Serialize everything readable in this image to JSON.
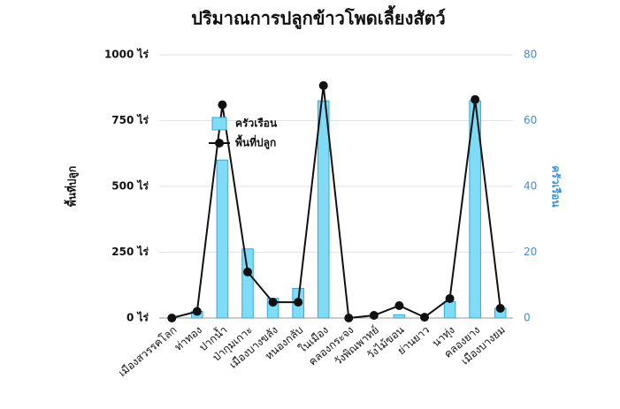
{
  "chart_data": {
    "type": "bar_line",
    "title": "ปริมาณการปลูกข้าวโพดเลี้ยงสัตว์",
    "y_label": "พื้นที่ปลูก",
    "y2_label": "ครัวเรือน",
    "categories": [
      "เมืองสวรรคโลก",
      "ท่าทอง",
      "ปากน้ำ",
      "ป่ากุมเกาะ",
      "เมืองบางขลัง",
      "หนองกลับ",
      "ในเมือง",
      "คลองกระจง",
      "วังพิณพาทย์",
      "วังไม้ขอน",
      "ย่านยาว",
      "นาทุ่ง",
      "คลองยาง",
      "เมืองบางยม"
    ],
    "series": [
      {
        "name": "ครัวเรือน",
        "type": "bar",
        "axis": "y2",
        "color": "#7fdcf7",
        "values": [
          0,
          2,
          48,
          21,
          6,
          9,
          66,
          0,
          0,
          1,
          0,
          5,
          66,
          3
        ]
      },
      {
        "name": "พื้นที่ปลูก",
        "type": "line",
        "axis": "y",
        "color": "#111111",
        "values": [
          0,
          25,
          810,
          175,
          60,
          60,
          883,
          0,
          10,
          47,
          3,
          74,
          830,
          37
        ]
      }
    ],
    "ylim": [
      0,
      1000
    ],
    "yticks": [
      {
        "value": 0,
        "label": "0 ไร่"
      },
      {
        "value": 250,
        "label": "250 ไร่"
      },
      {
        "value": 500,
        "label": "500 ไร่"
      },
      {
        "value": 750,
        "label": "750 ไร่"
      },
      {
        "value": 1000,
        "label": "1000 ไร่"
      }
    ],
    "y2lim": [
      0,
      80
    ],
    "y2ticks": [
      0,
      20,
      40,
      60,
      80
    ],
    "grid": true,
    "legend": "upper left"
  }
}
